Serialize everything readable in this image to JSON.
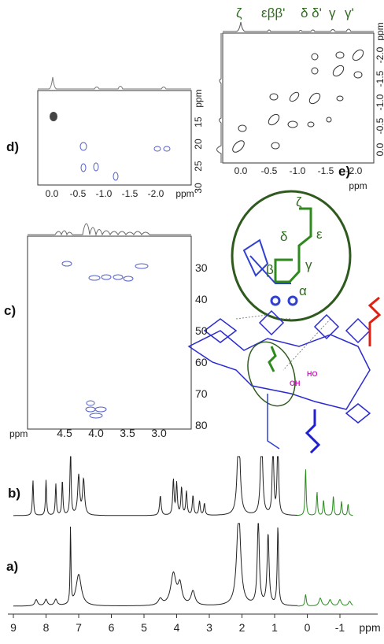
{
  "panel_e": {
    "label": "e)",
    "peak_labels": [
      "ζ",
      "εββ'",
      "δ δ'",
      "γ",
      "γ'"
    ],
    "x_ticks": [
      "0.0",
      "-0.5",
      "-1.0",
      "-1.5",
      "-2.0"
    ],
    "x_unit": "ppm",
    "y_ticks": [
      "-2.0",
      "-1.5",
      "-1.0",
      "-0.5",
      "0.0"
    ],
    "y_unit": "ppm"
  },
  "panel_d": {
    "label": "d)",
    "x_ticks": [
      "0.0",
      "-0.5",
      "-1.0",
      "-1.5",
      "-2.0"
    ],
    "x_unit": "ppm",
    "y_ticks": [
      "15",
      "20",
      "25",
      "30"
    ],
    "y_unit": "ppm"
  },
  "panel_c": {
    "label": "c)",
    "x_unit": "ppm",
    "x_ticks": [
      "4.5",
      "4.0",
      "3.5",
      "3.0"
    ],
    "y_ticks": [
      "30",
      "40",
      "50",
      "60",
      "70",
      "80"
    ]
  },
  "structure": {
    "greek_labels": [
      "ζ",
      "δ",
      "ε",
      "β",
      "γ",
      "α"
    ],
    "oh": "OH",
    "ho": "HO"
  },
  "panel_b": {
    "label": "b)"
  },
  "panel_a": {
    "label": "a)"
  },
  "axis": {
    "ticks": [
      "9",
      "8",
      "7",
      "6",
      "5",
      "4",
      "3",
      "2",
      "1",
      "0",
      "-1"
    ],
    "unit": "ppm"
  }
}
